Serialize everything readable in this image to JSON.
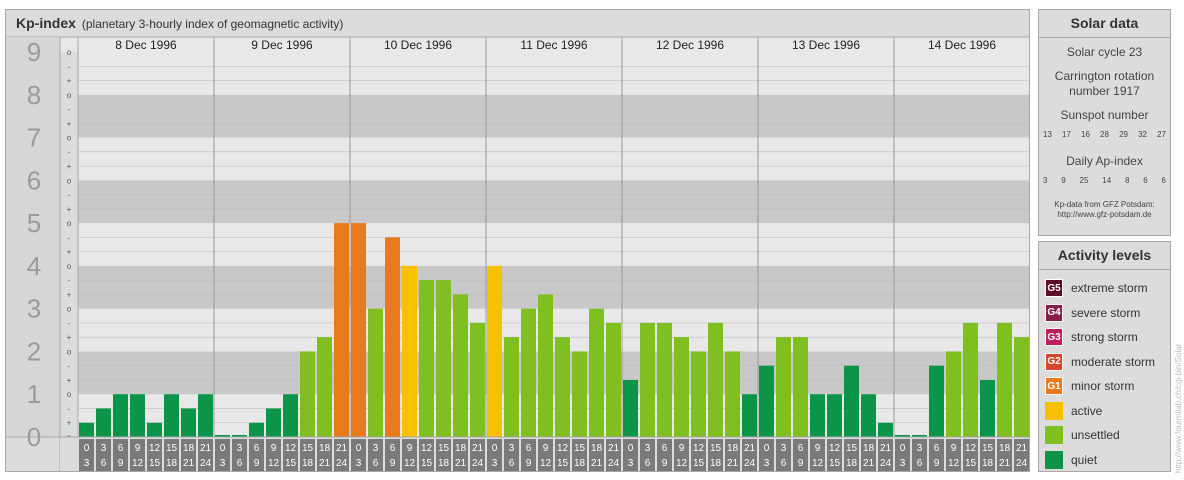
{
  "header": {
    "title": "Kp-index",
    "subtitle": "(planetary 3-hourly index of geomagnetic activity)"
  },
  "chart_data": {
    "type": "bar",
    "title": "Kp-index",
    "subtitle": "(planetary 3-hourly index of geomagnetic activity)",
    "y_tick_labels": [
      "0",
      "1",
      "2",
      "3",
      "4",
      "5",
      "6",
      "7",
      "8",
      "9"
    ],
    "y_range": [
      0,
      9
    ],
    "minor_tick_labels": [
      "o",
      "+",
      "-"
    ],
    "days": [
      "8 Dec 1996",
      "9 Dec 1996",
      "10 Dec 1996",
      "11 Dec 1996",
      "12 Dec 1996",
      "13 Dec 1996",
      "14 Dec 1996"
    ],
    "interval_start_labels": [
      "0",
      "3",
      "6",
      "9",
      "12",
      "15",
      "18",
      "21"
    ],
    "interval_end_labels": [
      "3",
      "6",
      "9",
      "12",
      "15",
      "18",
      "21",
      "24"
    ],
    "values": [
      0.333,
      0.667,
      1.0,
      1.0,
      0.333,
      1.0,
      0.667,
      1.0,
      0.0,
      0.0,
      0.333,
      0.667,
      1.0,
      2.0,
      2.333,
      5.0,
      5.0,
      3.0,
      4.667,
      4.0,
      3.667,
      3.667,
      3.333,
      2.667,
      4.0,
      2.333,
      3.0,
      3.333,
      2.333,
      2.0,
      3.0,
      2.667,
      1.333,
      2.667,
      2.667,
      2.333,
      2.0,
      2.667,
      2.0,
      1.0,
      1.667,
      2.333,
      2.333,
      1.0,
      1.0,
      1.667,
      1.0,
      0.333,
      0.0,
      0.0,
      1.667,
      2.0,
      2.667,
      1.333,
      2.667,
      2.333
    ],
    "colors": {
      "quiet": "#0c9448",
      "unsettled": "#7fbf1f",
      "active": "#f7c000",
      "minor_storm": "#e87a1e",
      "moderate_storm": "#d7452d",
      "strong_storm": "#c41c5e",
      "severe_storm": "#861e4d",
      "extreme_storm": "#5a0e2a"
    }
  },
  "solar_data": {
    "title": "Solar data",
    "cycle": "Solar cycle 23",
    "carrington": "Carrington rotation number 1917",
    "sunspot_label": "Sunspot number",
    "sunspot_values": [
      "13",
      "17",
      "16",
      "28",
      "29",
      "32",
      "27"
    ],
    "ap_label": "Daily Ap-index",
    "ap_values": [
      "3",
      "9",
      "25",
      "14",
      "8",
      "6",
      "6"
    ],
    "credit_line1": "Kp-data from GFZ Potsdam:",
    "credit_line2": "http://www.gfz-potsdam.de"
  },
  "activity_levels": {
    "title": "Activity levels",
    "items": [
      {
        "code": "G5",
        "label": "extreme storm",
        "color": "#5a0e2a"
      },
      {
        "code": "G4",
        "label": "severe storm",
        "color": "#861e4d"
      },
      {
        "code": "G3",
        "label": "strong storm",
        "color": "#c41c5e"
      },
      {
        "code": "G2",
        "label": "moderate storm",
        "color": "#d7452d"
      },
      {
        "code": "G1",
        "label": "minor storm",
        "color": "#e87a1e"
      },
      {
        "code": "",
        "label": "active",
        "color": "#f7c000"
      },
      {
        "code": "",
        "label": "unsettled",
        "color": "#7fbf1f"
      },
      {
        "code": "",
        "label": "quiet",
        "color": "#0c9448"
      }
    ]
  },
  "watermark": "http://www.fourmilab.ch/cgi-bin/Solar"
}
